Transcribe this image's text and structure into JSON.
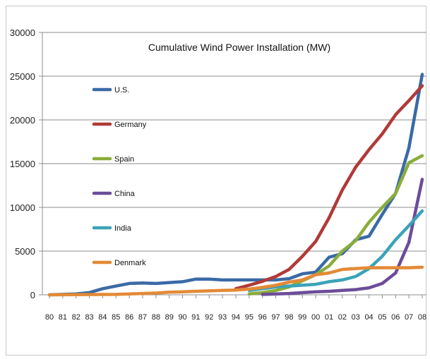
{
  "chart_data": {
    "type": "line",
    "title": "Cumulative Wind Power Installation (MW)",
    "xlabel": "",
    "ylabel": "",
    "ylim": [
      0,
      30000
    ],
    "yticks": [
      "0",
      "5000",
      "10000",
      "15000",
      "20000",
      "25000",
      "30000"
    ],
    "categories": [
      "80",
      "81",
      "82",
      "83",
      "84",
      "85",
      "86",
      "87",
      "88",
      "89",
      "90",
      "91",
      "92",
      "93",
      "94",
      "95",
      "96",
      "97",
      "98",
      "99",
      "00",
      "01",
      "02",
      "03",
      "04",
      "05",
      "06",
      "07",
      "08"
    ],
    "grid": true,
    "legend_position": "left",
    "series": [
      {
        "name": "U.S.",
        "color": "#3a6aa6",
        "values": [
          0,
          50,
          100,
          250,
          700,
          1000,
          1300,
          1350,
          1300,
          1400,
          1500,
          1800,
          1800,
          1700,
          1700,
          1700,
          1700,
          1700,
          1850,
          2400,
          2600,
          4300,
          4700,
          6300,
          6700,
          9200,
          11600,
          16800,
          25200
        ]
      },
      {
        "name": "Germany",
        "color": "#b03a38",
        "values": [
          null,
          null,
          null,
          null,
          null,
          null,
          null,
          null,
          null,
          null,
          null,
          null,
          null,
          null,
          700,
          1100,
          1550,
          2100,
          2900,
          4400,
          6100,
          8800,
          12000,
          14600,
          16600,
          18400,
          20600,
          22200,
          23900
        ]
      },
      {
        "name": "Spain",
        "color": "#8aad3a",
        "values": [
          null,
          null,
          null,
          null,
          null,
          null,
          null,
          null,
          null,
          null,
          null,
          null,
          null,
          null,
          null,
          100,
          250,
          500,
          900,
          1600,
          2300,
          3300,
          5000,
          6200,
          8300,
          10000,
          11600,
          15100,
          15900
        ]
      },
      {
        "name": "China",
        "color": "#6c4c9a",
        "values": [
          null,
          null,
          null,
          null,
          null,
          null,
          null,
          null,
          null,
          null,
          null,
          null,
          null,
          null,
          null,
          null,
          50,
          100,
          150,
          250,
          350,
          400,
          500,
          600,
          800,
          1300,
          2500,
          6000,
          13200
        ]
      },
      {
        "name": "India",
        "color": "#3aa3b8",
        "values": [
          null,
          null,
          null,
          null,
          null,
          null,
          null,
          null,
          null,
          null,
          null,
          null,
          null,
          null,
          null,
          500,
          700,
          900,
          1000,
          1100,
          1200,
          1500,
          1700,
          2100,
          3000,
          4400,
          6300,
          7900,
          9600
        ]
      },
      {
        "name": "Denmark",
        "color": "#e38a36",
        "values": [
          0,
          10,
          20,
          30,
          40,
          50,
          100,
          150,
          200,
          300,
          350,
          400,
          450,
          500,
          550,
          650,
          850,
          1100,
          1450,
          1700,
          2300,
          2500,
          2900,
          3000,
          3100,
          3100,
          3100,
          3100,
          3150
        ]
      }
    ]
  }
}
